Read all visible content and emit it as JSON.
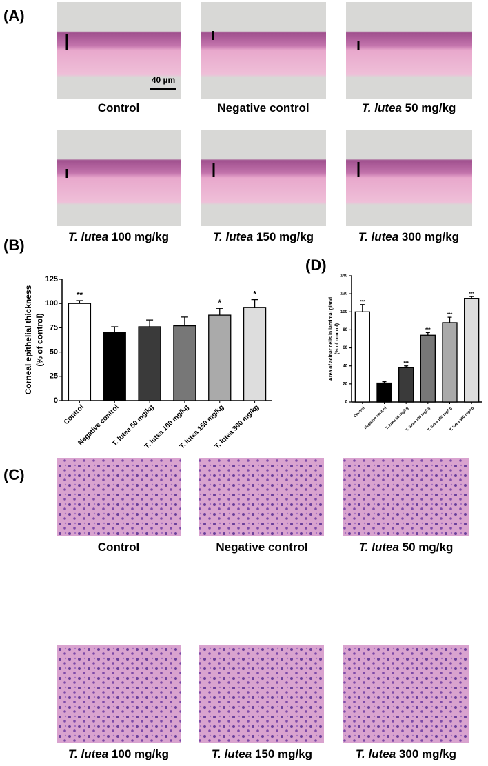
{
  "panel_labels": [
    "(A)",
    "(B)",
    "(C)",
    "(D)"
  ],
  "scale_bar": "40 µm",
  "captions": [
    {
      "text": "Control"
    },
    {
      "text": "Negative control"
    },
    {
      "em": "T. lutea",
      "text": "50 mg/kg"
    },
    {
      "em": "T. lutea",
      "text": "100 mg/kg"
    },
    {
      "em": "T. lutea",
      "text": "150 mg/kg"
    },
    {
      "em": "T. lutea",
      "text": "300 mg/kg"
    }
  ],
  "chart_data": [
    {
      "type": "bar",
      "y_label": [
        "Corneal epithelial thickness",
        "(% of control)"
      ],
      "categories": [
        "Control",
        "Negative control",
        "T. lutea 50 mg/kg",
        "T. lutea 100 mg/kg",
        "T. lutea 150 mg/kg",
        "T. lutea 300 mg/kg"
      ],
      "series": [
        {
          "values": [
            100,
            70,
            76,
            77,
            88,
            96
          ],
          "errors": [
            3,
            6,
            7,
            9,
            7,
            8
          ],
          "colors": [
            "#ffffff",
            "#000000",
            "#3a3a3a",
            "#777777",
            "#aaaaaa",
            "#dddddd"
          ]
        }
      ],
      "annotations": [
        "**",
        null,
        null,
        null,
        "*",
        "*"
      ],
      "ylim": [
        0,
        125
      ],
      "yticks": [
        0,
        25,
        50,
        75,
        100,
        125
      ]
    },
    {
      "type": "bar",
      "y_label": [
        "Area of acinar cells in lacrimal gland",
        "(% of control)"
      ],
      "categories": [
        "Control",
        "Negative control",
        "T. lutea 50 mg/kg",
        "T. lutea 100 mg/kg",
        "T. lutea 150 mg/kg",
        "T. lutea 300 mg/kg"
      ],
      "series": [
        {
          "values": [
            100,
            21,
            38,
            74,
            88,
            115
          ],
          "errors": [
            8,
            1.5,
            2,
            3,
            6,
            2
          ],
          "colors": [
            "#ffffff",
            "#000000",
            "#3a3a3a",
            "#777777",
            "#aaaaaa",
            "#dddddd"
          ]
        }
      ],
      "annotations": [
        "***",
        null,
        "***",
        "***",
        "***",
        "***"
      ],
      "ylim": [
        0,
        140
      ],
      "yticks": [
        0,
        20,
        40,
        60,
        80,
        100,
        120,
        140
      ]
    }
  ]
}
